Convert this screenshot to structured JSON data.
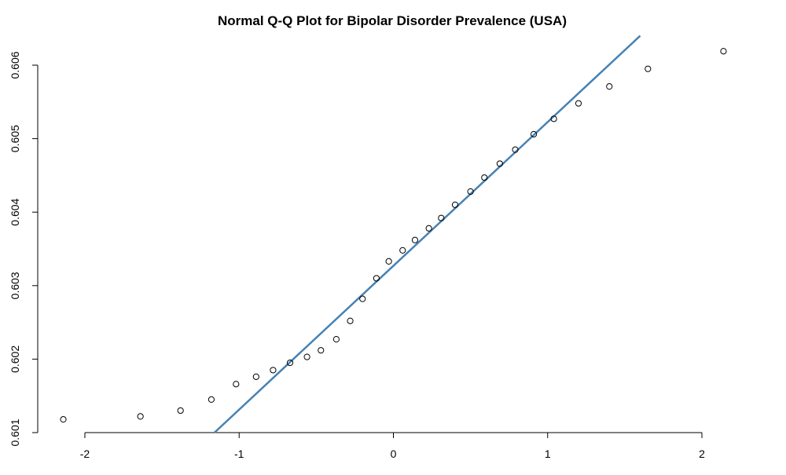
{
  "chart_data": {
    "type": "scatter",
    "title": "Normal Q-Q Plot for Bipolar Disorder Prevalence (USA)",
    "xlabel": "",
    "ylabel": "",
    "xlim": [
      -2.2,
      2.2
    ],
    "ylim": [
      0.601,
      0.6062
    ],
    "x_ticks": [
      -2,
      -1,
      0,
      1,
      2
    ],
    "x_tick_labels": [
      "-2",
      "-1",
      "0",
      "1",
      "2"
    ],
    "y_ticks": [
      0.601,
      0.602,
      0.603,
      0.604,
      0.605,
      0.606
    ],
    "y_tick_labels": [
      "0.601",
      "0.602",
      "0.603",
      "0.604",
      "0.605",
      "0.606"
    ],
    "grid": false,
    "points": [
      {
        "x": -2.14,
        "y": 0.60118
      },
      {
        "x": -1.64,
        "y": 0.60122
      },
      {
        "x": -1.38,
        "y": 0.6013
      },
      {
        "x": -1.18,
        "y": 0.60145
      },
      {
        "x": -1.02,
        "y": 0.60166
      },
      {
        "x": -0.89,
        "y": 0.60176
      },
      {
        "x": -0.78,
        "y": 0.60185
      },
      {
        "x": -0.67,
        "y": 0.60195
      },
      {
        "x": -0.56,
        "y": 0.60203
      },
      {
        "x": -0.47,
        "y": 0.60212
      },
      {
        "x": -0.37,
        "y": 0.60227
      },
      {
        "x": -0.28,
        "y": 0.60252
      },
      {
        "x": -0.2,
        "y": 0.60282
      },
      {
        "x": -0.11,
        "y": 0.6031
      },
      {
        "x": -0.03,
        "y": 0.60333
      },
      {
        "x": 0.06,
        "y": 0.60348
      },
      {
        "x": 0.14,
        "y": 0.60362
      },
      {
        "x": 0.23,
        "y": 0.60378
      },
      {
        "x": 0.31,
        "y": 0.60392
      },
      {
        "x": 0.4,
        "y": 0.6041
      },
      {
        "x": 0.5,
        "y": 0.60428
      },
      {
        "x": 0.59,
        "y": 0.60447
      },
      {
        "x": 0.69,
        "y": 0.60466
      },
      {
        "x": 0.79,
        "y": 0.60485
      },
      {
        "x": 0.91,
        "y": 0.60506
      },
      {
        "x": 1.04,
        "y": 0.60527
      },
      {
        "x": 1.2,
        "y": 0.60548
      },
      {
        "x": 1.4,
        "y": 0.60571
      },
      {
        "x": 1.65,
        "y": 0.60595
      },
      {
        "x": 2.14,
        "y": 0.60619
      }
    ],
    "reference_line": {
      "x1": -1.16,
      "y1": 0.601,
      "x2": 1.6,
      "y2": 0.6064,
      "color": "#4682b4"
    },
    "point_color": "#000000"
  }
}
